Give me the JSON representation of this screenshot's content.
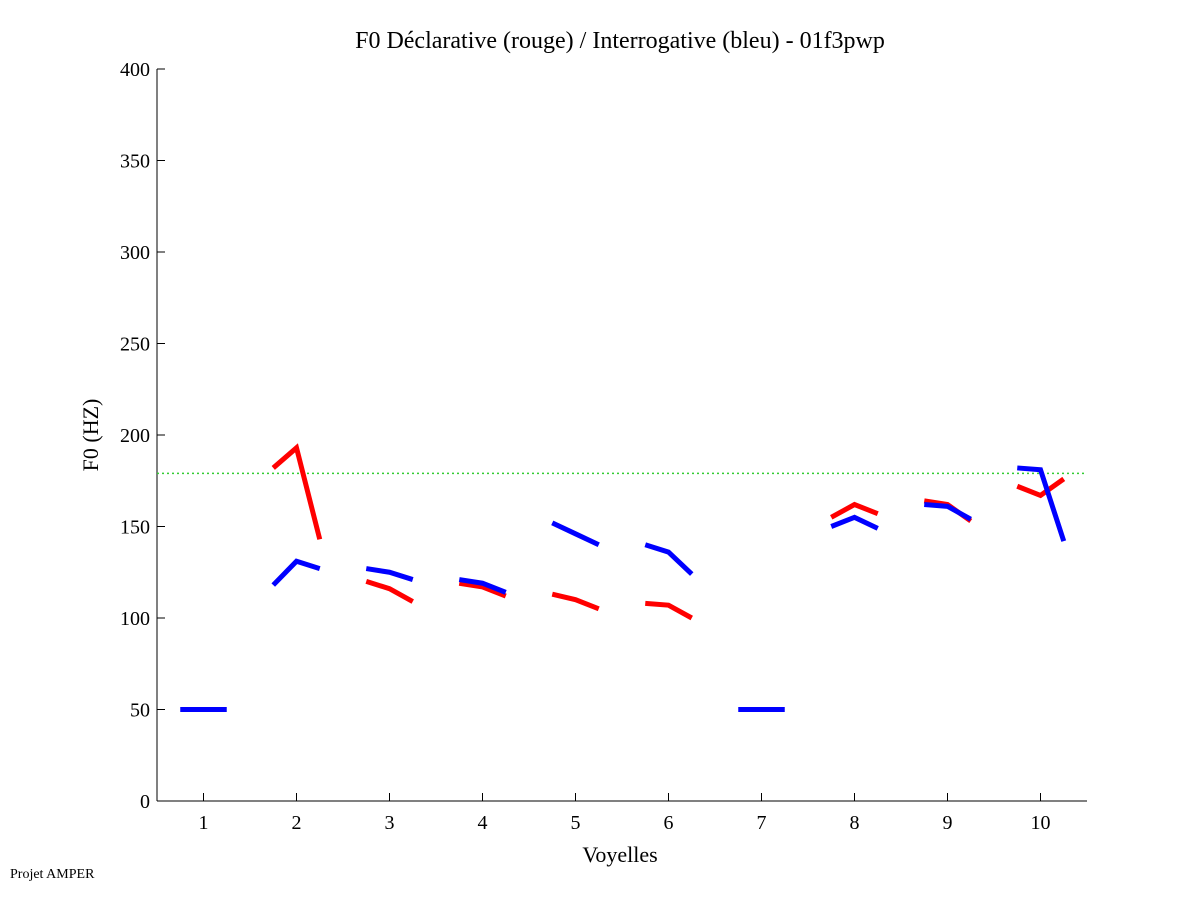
{
  "chart_data": {
    "type": "line",
    "title": "F0 Déclarative (rouge) / Interrogative (bleu) - 01f3pwp",
    "xlabel": "Voyelles",
    "ylabel": "F0 (HZ)",
    "xlim": [
      0.5,
      10.5
    ],
    "ylim": [
      0,
      400
    ],
    "xticks": [
      1,
      2,
      3,
      4,
      5,
      6,
      7,
      8,
      9,
      10
    ],
    "yticks": [
      0,
      50,
      100,
      150,
      200,
      250,
      300,
      350,
      400
    ],
    "reference_line": {
      "value": 179,
      "color": "#33cc33",
      "style": "dotted"
    },
    "series": [
      {
        "name": "Déclarative",
        "color": "#ff0000",
        "segments": [
          {
            "vowel": 2,
            "values": [
              182,
              193,
              143
            ]
          },
          {
            "vowel": 3,
            "values": [
              120,
              116,
              109
            ]
          },
          {
            "vowel": 4,
            "values": [
              119,
              117,
              112
            ]
          },
          {
            "vowel": 5,
            "values": [
              113,
              110,
              105
            ]
          },
          {
            "vowel": 6,
            "values": [
              108,
              107,
              100
            ]
          },
          {
            "vowel": 8,
            "values": [
              155,
              162,
              157
            ]
          },
          {
            "vowel": 9,
            "values": [
              164,
              162,
              153
            ]
          },
          {
            "vowel": 10,
            "values": [
              172,
              167,
              176
            ]
          }
        ]
      },
      {
        "name": "Interrogative",
        "color": "#0000ff",
        "segments": [
          {
            "vowel": 1,
            "values": [
              50,
              50,
              50
            ]
          },
          {
            "vowel": 2,
            "values": [
              118,
              131,
              127
            ]
          },
          {
            "vowel": 3,
            "values": [
              127,
              125,
              121
            ]
          },
          {
            "vowel": 4,
            "values": [
              121,
              119,
              114
            ]
          },
          {
            "vowel": 5,
            "values": [
              152,
              146,
              140
            ]
          },
          {
            "vowel": 6,
            "values": [
              140,
              136,
              124
            ]
          },
          {
            "vowel": 7,
            "values": [
              50,
              50,
              50
            ]
          },
          {
            "vowel": 8,
            "values": [
              150,
              155,
              149
            ]
          },
          {
            "vowel": 9,
            "values": [
              162,
              161,
              154
            ]
          },
          {
            "vowel": 10,
            "values": [
              182,
              181,
              142
            ]
          }
        ]
      }
    ]
  },
  "footer": "Projet AMPER"
}
